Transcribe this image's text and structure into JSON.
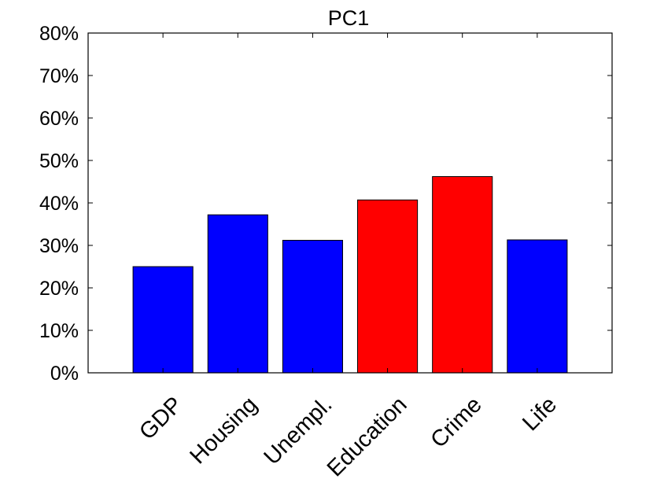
{
  "chart_data": {
    "type": "bar",
    "title": "PC1",
    "xlabel": "",
    "ylabel": "",
    "categories": [
      "GDP",
      "Housing",
      "Unempl.",
      "Education",
      "Crime",
      "Life"
    ],
    "values": [
      25,
      37.2,
      31.2,
      40.7,
      46.2,
      31.3
    ],
    "bar_colors": [
      "#0000ff",
      "#0000ff",
      "#0000ff",
      "#ff0000",
      "#ff0000",
      "#0000ff"
    ],
    "ylim": [
      0,
      80
    ],
    "yticks": [
      0,
      10,
      20,
      30,
      40,
      50,
      60,
      70,
      80
    ],
    "ytick_labels": [
      "0%",
      "10%",
      "20%",
      "30%",
      "40%",
      "50%",
      "60%",
      "70%",
      "80%"
    ],
    "grid": false,
    "legend": "none"
  }
}
